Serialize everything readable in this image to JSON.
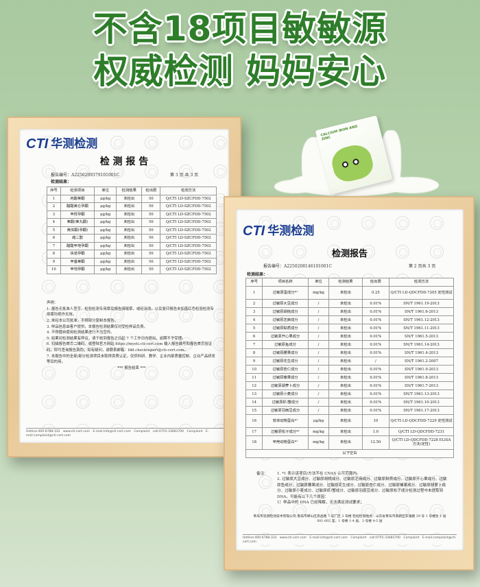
{
  "headline": {
    "line1": "不含18项目敏敏源",
    "line2": "权威检测 妈妈安心"
  },
  "colors": {
    "headline": "#2e7d2a",
    "brand_blue": "#1a3d8f",
    "brand_green": "#2e9b3a",
    "background": "#b9d4b0",
    "frame": "#e8c999"
  },
  "product": {
    "box_text": "CALCIUM IRON AND ZINC",
    "illustration": "green-bunny-cartoon",
    "icon": "milk-splash"
  },
  "logo": {
    "cti": "CTI",
    "name": "华测检测"
  },
  "watermark": "CTI",
  "left_report": {
    "title": "检 测 报 告",
    "report_no": "报告编号：A2250209379101001C",
    "page": "第 3 页 共 3 页",
    "results_label": "检测结果：",
    "headers": [
      "序号",
      "检测项目",
      "单位",
      "检测结果",
      "检出限",
      "检测方法"
    ],
    "rows": [
      [
        "1",
        "丙酸睾酮",
        "μg/kg",
        "未检出",
        "50",
        "Q/CTI LD-SZCFDD-7502"
      ],
      [
        "2",
        "醋酸美仑孕酮",
        "μg/kg",
        "未检出",
        "50",
        "Q/CTI LD-SZCFDD-7502"
      ],
      [
        "3",
        "甲羟孕酮",
        "μg/kg",
        "未检出",
        "50",
        "Q/CTI LD-SZCFDD-7502"
      ],
      [
        "4",
        "睾酮(睾丸酮)",
        "μg/kg",
        "未检出",
        "50",
        "Q/CTI LD-SZCFDD-7502"
      ],
      [
        "5",
        "黄体酮(孕酮)",
        "μg/kg",
        "未检出",
        "50",
        "Q/CTI LD-SZCFDD-7502"
      ],
      [
        "6",
        "雌二醇",
        "μg/kg",
        "未检出",
        "50",
        "Q/CTI LD-SZCFDD-7502"
      ],
      [
        "7",
        "醋酸甲地孕酮",
        "μg/kg",
        "未检出",
        "50",
        "Q/CTI LD-SZCFDD-7502"
      ],
      [
        "8",
        "炔诺孕酮",
        "μg/kg",
        "未检出",
        "50",
        "Q/CTI LD-SZCFDD-7502"
      ],
      [
        "9",
        "甲基睾酮",
        "μg/kg",
        "未检出",
        "50",
        "Q/CTI LD-SZCFDD-7502"
      ],
      [
        "10",
        "甲地孕酮",
        "μg/kg",
        "未检出",
        "50",
        "Q/CTI LD-SZCFDD-7502"
      ]
    ],
    "statement_label": "声明：",
    "statements": [
      "1. 报告无批准人签字、检验检测专用章及报告骑缝章，或经涂改，以及复印报告未加盖红色检验检测专用章均视作无效。",
      "2. 未经本公司批准，不得部分复制本报告。",
      "3. 样品信息由客户提供，本报告检测结果仅对受检样品负责。",
      "4. 不得擅自使用检测结果进行不当宣传。",
      "5. 如果对检测结果有异议，请于收到报告之日起 7 个工作日内提出，逾期不予受理。",
      "6. 扫描报告首页二维码，或登陆官方网站 https://myeti.cti-cert.com 输入报告编号和报告首页验证码，即可查询报告真伪；如有疑问，请联系邮箱：fdd.checkreport@cti-cert.com。",
      "7. 本报告中的全部/部分检测项目未取得资质认定，仅供科研、教学、企业内部质量控制、企业产品研发等目的用。"
    ],
    "end": "*** 报告结束 ***",
    "footer": "Hotline:400-6788-333 www.cti-cert.com E-mail:info@cti-cert.com Complaint call:0755-33681700 Complaint E-mail:complaint@cti-cert.com"
  },
  "right_report": {
    "title": "检测报告",
    "report_no": "报告编号：A2250208146101001C",
    "page": "第 2 页共 3 页",
    "results_label": "检测结果：",
    "headers": [
      "序号",
      "项目名称",
      "单位",
      "检测结果",
      "检出限",
      "检测方法"
    ],
    "rows": [
      [
        "1",
        "过敏原蛋成分*¹",
        "mg/kg",
        "未检出",
        "0.25",
        "Q/CTI LD-QDCFDD-7205 定性测试"
      ],
      [
        "2",
        "过敏原大豆成分",
        "/",
        "未检出",
        "0.01%",
        "SN/T 1961.19-2013"
      ],
      [
        "3",
        "过敏原胡桃成分",
        "/",
        "未检出",
        "0.01%",
        "SN/T 1961.6-2013"
      ],
      [
        "4",
        "过敏原芝麻成分",
        "/",
        "未检出",
        "0.01%",
        "SN/T 1961.12-2013"
      ],
      [
        "5",
        "过敏原麸质成分",
        "/",
        "未检出",
        "0.01%",
        "SN/T 1961.11-2013"
      ],
      [
        "6",
        "过敏原开心果成分",
        "/",
        "未检出",
        "0.01%",
        "SN/T 1961.5-2013"
      ],
      [
        "7",
        "过敏原鱼成分",
        "/",
        "未检出",
        "0.01%",
        "SN/T 1961.14-2013"
      ],
      [
        "8",
        "过敏原腰果成分",
        "/",
        "未检出",
        "0.01%",
        "SN/T 1961.4-2013"
      ],
      [
        "9",
        "过敏原花生成分",
        "/",
        "未检出",
        "/",
        "SN/T 1961.2-2007"
      ],
      [
        "10",
        "过敏原杏仁成分",
        "/",
        "未检出",
        "0.01%",
        "SN/T 1961.9-2013"
      ],
      [
        "11",
        "过敏原榛果成分",
        "/",
        "未检出",
        "0.01%",
        "SN/T 1961.8-2013"
      ],
      [
        "12",
        "过敏原胡萝卜成分",
        "/",
        "未检出",
        "0.01%",
        "SN/T 1961.7-2013"
      ],
      [
        "13",
        "过敏原小麦成分",
        "/",
        "未检出",
        "0.01%",
        "SN/T 1961.13-2013"
      ],
      [
        "14",
        "过敏原虾/蟹成分",
        "/",
        "未检出",
        "0.01%",
        "SN/T 1961.10-2013"
      ],
      [
        "15",
        "过敏原羽扇豆成分",
        "/",
        "未检出",
        "0.01%",
        "SN/T 1961.17-2013"
      ],
      [
        "16",
        "软体动物蛋白*¹",
        "μg/kg",
        "未检出",
        "10",
        "Q/CTI LD-QDCFDD-7229 定性测试"
      ],
      [
        "17",
        "过敏原松子成分*¹",
        "mg/kg",
        "未检出",
        "1.0",
        "Q/CTI LD-QDCFDD-7231"
      ],
      [
        "18",
        "甲壳动物蛋白*¹",
        "mg/kg",
        "未检出",
        "12.50",
        "Q/CTI LD-QDCFDD-7228 ELISA 方法(定性)"
      ]
    ],
    "blank_row": "以下空白",
    "notes_label": "备注：",
    "notes": [
      "1. *1 表示该项目/方法不在 CNAS 认可范围内。",
      "2. 过敏原大豆成分、过敏原胡桃成分、过敏原芝麻成分、过敏原麸质成分、过敏原开心果成分、过敏原鱼成分、过敏原腰果成分、过敏原花生成分、过敏原杏仁成分、过敏原榛果成分、过敏原胡萝卜成分、过敏原小麦成分、过敏原虾/蟹成分、过敏原羽扇豆成分、过敏原松子成分检测过程中未提取到DNA，可能有以下几个原因：",
      "1）样品中的 DNA 已经降解，无法满足测试要求；"
    ],
    "address": "青岛市华测检测技术有限公司 青岛市崂山区高昌路 7 号厂区 3 号楼 检验检测地点：山东省青岛市高新区东滩路 39 号 1 号楼负 1 层 001-002 室、1 号楼 1-4 层、3 号楼 4-5 层",
    "footer": "Hotline:400-6788-333 www.cti-cert.com E-mail:info@cti-cert.com Complaint call:0755-33681700 Complaint E-mail:complaint@cti-cert.com"
  }
}
